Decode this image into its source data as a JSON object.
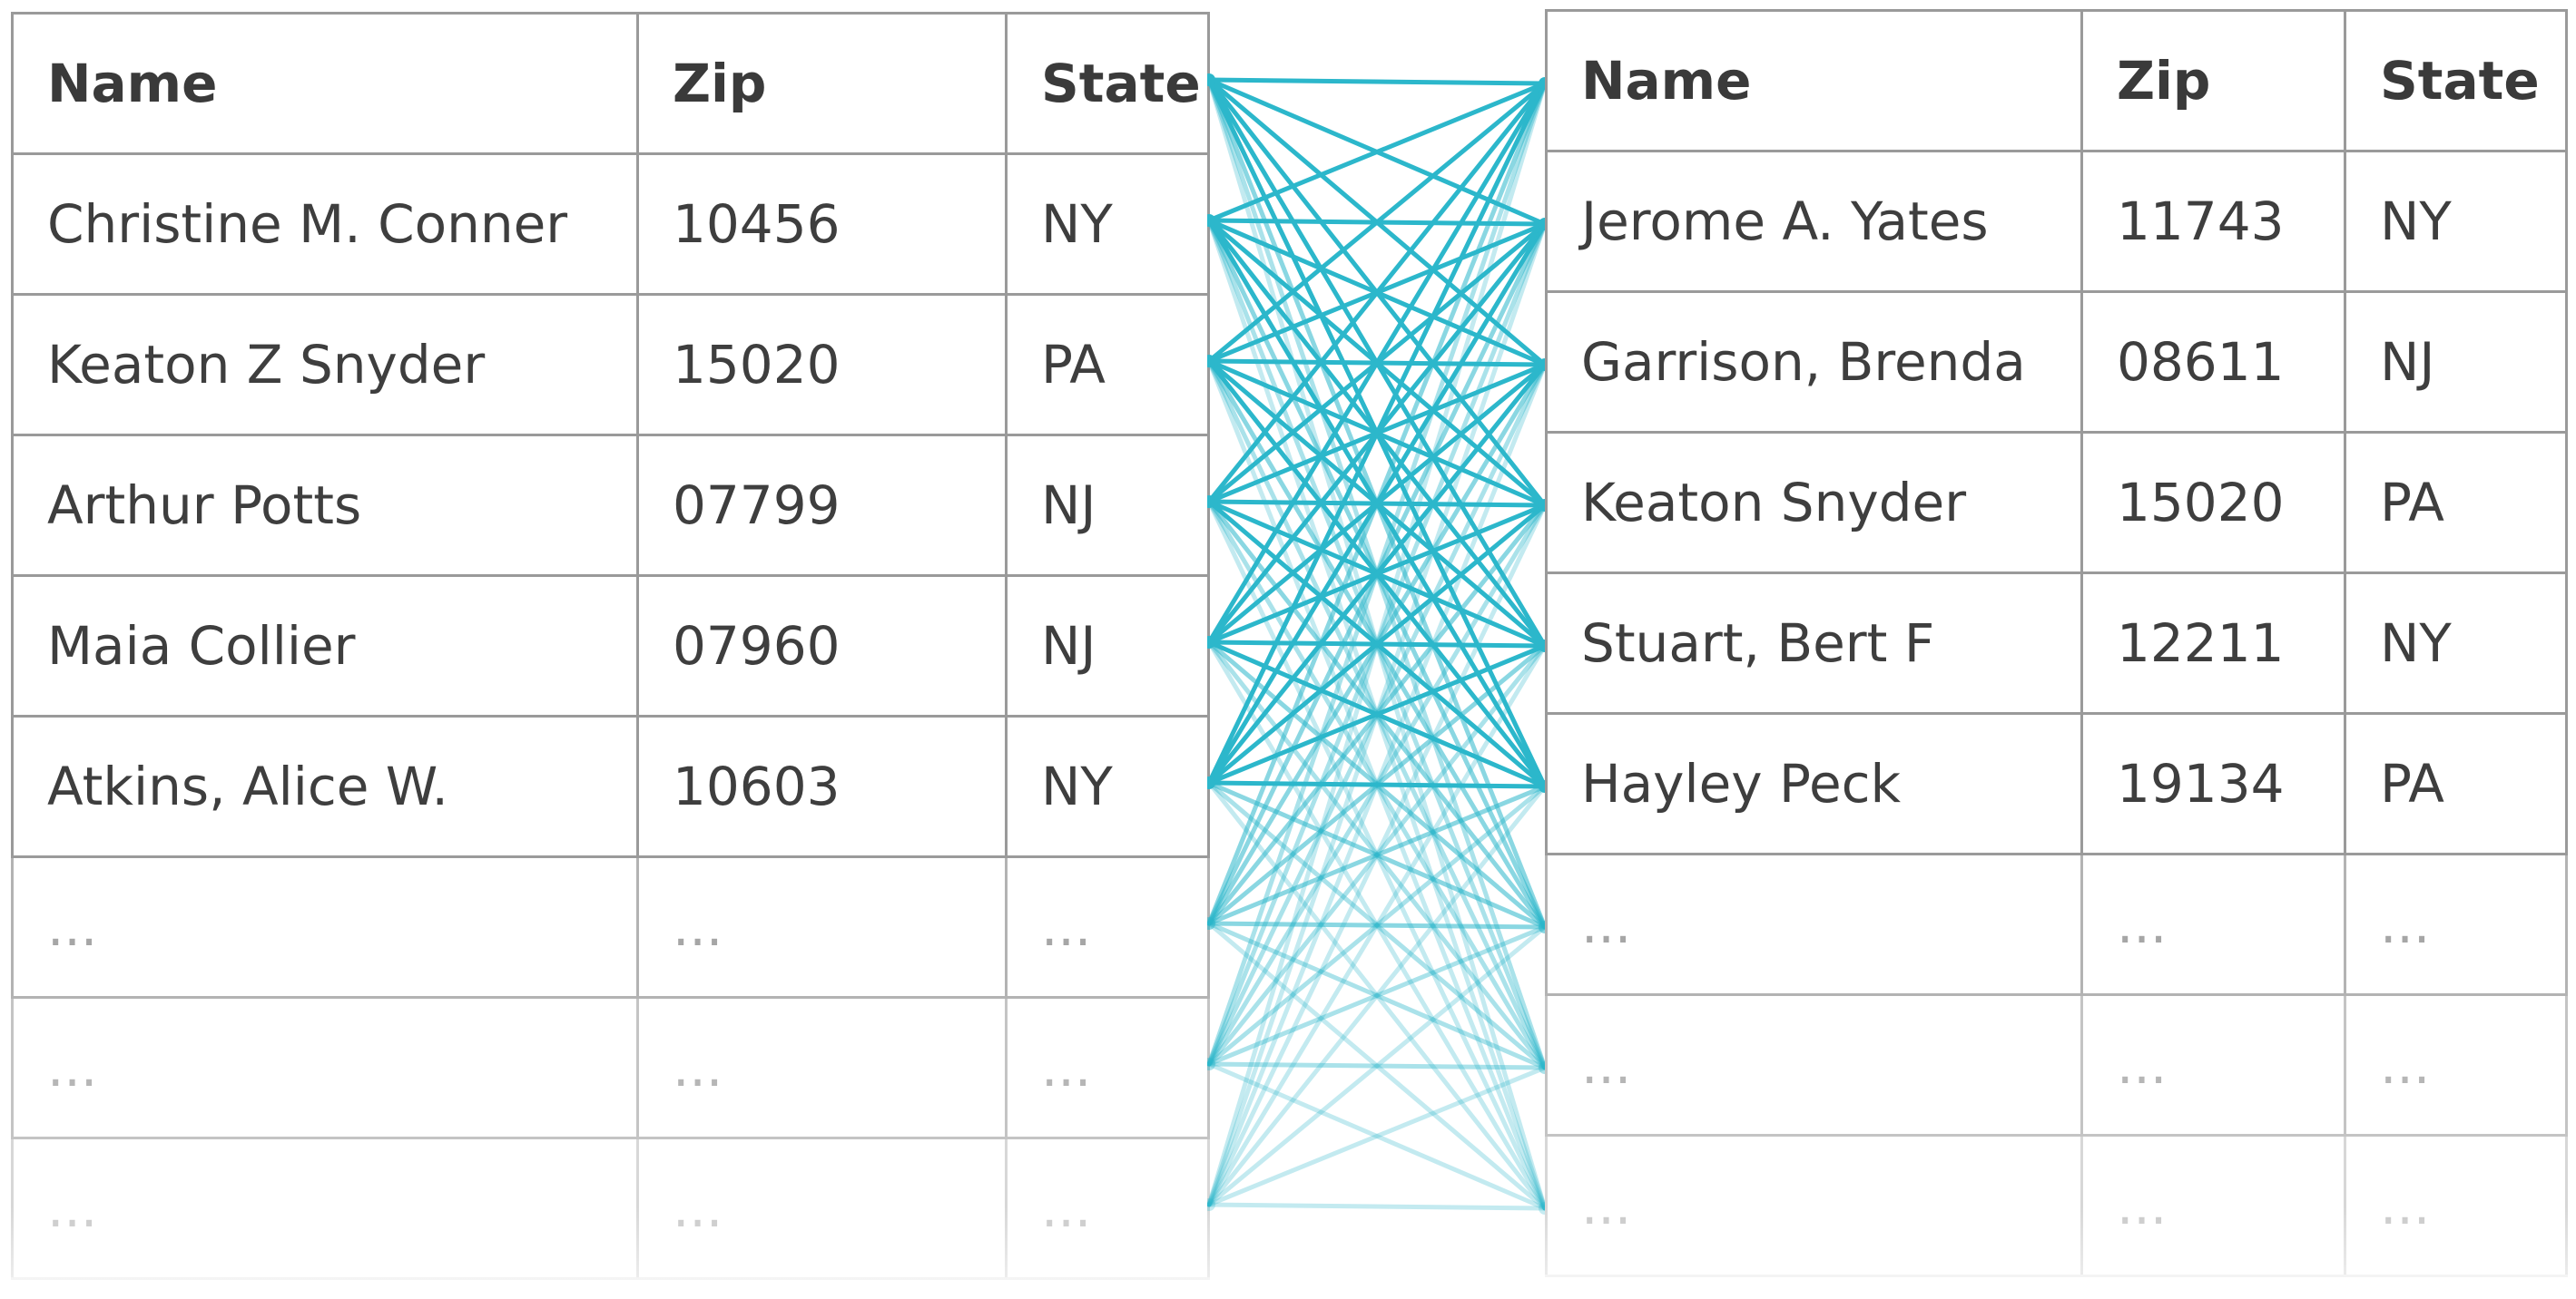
{
  "left_table": {
    "headers": [
      "Name",
      "Zip",
      "State"
    ],
    "rows": [
      [
        "Christine M. Conner",
        "10456",
        "NY"
      ],
      [
        "Keaton Z Snyder",
        "15020",
        "PA"
      ],
      [
        "Arthur Potts",
        "07799",
        "NJ"
      ],
      [
        "Maia Collier",
        "07960",
        "NJ"
      ],
      [
        "Atkins, Alice W.",
        "10603",
        "NY"
      ],
      [
        "...",
        "...",
        "..."
      ],
      [
        "...",
        "...",
        "..."
      ],
      [
        "...",
        "...",
        "..."
      ]
    ]
  },
  "right_table": {
    "headers": [
      "Name",
      "Zip",
      "State"
    ],
    "rows": [
      [
        "Jerome A. Yates",
        "11743",
        "NY"
      ],
      [
        "Garrison, Brenda",
        "08611",
        "NJ"
      ],
      [
        "Keaton Snyder",
        "15020",
        "PA"
      ],
      [
        "Stuart, Bert F",
        "12211",
        "NY"
      ],
      [
        "Hayley Peck",
        "19134",
        "PA"
      ],
      [
        "...",
        "...",
        "..."
      ],
      [
        "...",
        "...",
        "..."
      ],
      [
        "...",
        "...",
        "..."
      ]
    ]
  },
  "links": {
    "color": "#2cb7cb",
    "pairing": "all-to-all",
    "solid_rows": 6,
    "faded_rows": 3
  }
}
